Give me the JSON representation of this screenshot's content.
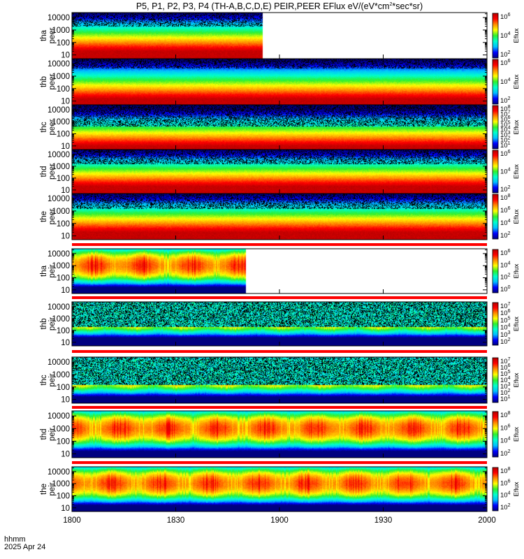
{
  "title_main": "P5, P1, P2, P3, P4 (TH-A,B,C,D,E) PEIR,PEER EFlux eV/(eV*cm",
  "title_exp": "2",
  "title_tail": "*sec*sr)",
  "time_axis": {
    "label_line1": "hhmm",
    "label_line2": "2025 Apr 24",
    "ticks": [
      "1800",
      "1830",
      "1900",
      "1930",
      "2000"
    ]
  },
  "colorbar_label": "Eflux",
  "colors": {
    "spectrogram_scale": [
      "#000080",
      "#0000ff",
      "#00bfff",
      "#00ffcc",
      "#2ef02e",
      "#ffff00",
      "#ff8c00",
      "#ff0000",
      "#b40000"
    ],
    "no_data_marks": "#000000",
    "bar_red": "#ff0000",
    "bar_yellow": "#ffff00"
  },
  "chart_data": [
    {
      "type": "heatmap",
      "probe": "tha",
      "species": "peer",
      "ylabel_1": "tha",
      "ylabel_2": "peer",
      "yticks": [
        "10",
        "100",
        "1000",
        "10000"
      ],
      "ylim": [
        5,
        25000
      ],
      "yscale": "log",
      "x_range": [
        "1800",
        "2000"
      ],
      "data_end_fraction": 0.46,
      "colorbar_ticks": [
        {
          "base": "10",
          "exp": "6"
        },
        {
          "base": "10",
          "exp": "4"
        },
        {
          "base": "10",
          "exp": "2"
        }
      ],
      "peak_energy_eV": 20,
      "noise_floor_energy_eV": 2000
    },
    {
      "type": "heatmap",
      "probe": "thb",
      "species": "peer",
      "ylabel_1": "thb",
      "ylabel_2": "peer",
      "yticks": [
        "10",
        "100",
        "1000",
        "10000"
      ],
      "ylim": [
        5,
        25000
      ],
      "yscale": "log",
      "x_range": [
        "1800",
        "2000"
      ],
      "data_end_fraction": 1.0,
      "colorbar_ticks": [
        {
          "base": "10",
          "exp": "6"
        },
        {
          "base": "10",
          "exp": "4"
        },
        {
          "base": "10",
          "exp": "2"
        }
      ],
      "peak_energy_eV": 15,
      "noise_floor_energy_eV": 4000
    },
    {
      "type": "heatmap",
      "probe": "thc",
      "species": "peer",
      "ylabel_1": "thc",
      "ylabel_2": "peer",
      "yticks": [
        "10",
        "100",
        "1000",
        "10000"
      ],
      "ylim": [
        5,
        25000
      ],
      "yscale": "log",
      "x_range": [
        "1800",
        "2000"
      ],
      "data_end_fraction": 1.0,
      "colorbar_ticks": [
        {
          "base": "10",
          "exp": "8"
        },
        {
          "base": "10",
          "exp": "7"
        },
        {
          "base": "10",
          "exp": "6"
        },
        {
          "base": "10",
          "exp": "5"
        },
        {
          "base": "10",
          "exp": "4"
        },
        {
          "base": "10",
          "exp": "3"
        },
        {
          "base": "10",
          "exp": "2"
        },
        {
          "base": "10",
          "exp": "1"
        }
      ],
      "peak_energy_eV": 10,
      "noise_floor_energy_eV": 400
    },
    {
      "type": "heatmap",
      "probe": "thd",
      "species": "peer",
      "ylabel_1": "thd",
      "ylabel_2": "peer",
      "yticks": [
        "10",
        "100",
        "1000",
        "10000"
      ],
      "ylim": [
        5,
        25000
      ],
      "yscale": "log",
      "x_range": [
        "1800",
        "2000"
      ],
      "data_end_fraction": 1.0,
      "colorbar_ticks": [
        {
          "base": "10",
          "exp": "6"
        },
        {
          "base": "10",
          "exp": "4"
        },
        {
          "base": "10",
          "exp": "2"
        }
      ],
      "peak_energy_eV": 20,
      "noise_floor_energy_eV": 1500
    },
    {
      "type": "heatmap",
      "probe": "the",
      "species": "peer",
      "ylabel_1": "the",
      "ylabel_2": "peer",
      "yticks": [
        "10",
        "100",
        "1000",
        "10000"
      ],
      "ylim": [
        5,
        25000
      ],
      "yscale": "log",
      "x_range": [
        "1800",
        "2000"
      ],
      "data_end_fraction": 1.0,
      "colorbar_ticks": [
        {
          "base": "10",
          "exp": "8"
        },
        {
          "base": "10",
          "exp": "6"
        },
        {
          "base": "10",
          "exp": "4"
        },
        {
          "base": "10",
          "exp": "2"
        }
      ],
      "peak_energy_eV": 20,
      "noise_floor_energy_eV": 1500
    },
    {
      "type": "heatmap",
      "probe": "tha",
      "species": "peir",
      "ylabel_1": "tha",
      "ylabel_2": "peir",
      "yticks": [
        "10",
        "100",
        "1000",
        "10000"
      ],
      "ylim": [
        5,
        25000
      ],
      "yscale": "log",
      "x_range": [
        "1800",
        "2000"
      ],
      "data_end_fraction": 0.42,
      "colorbar_ticks": [
        {
          "base": "10",
          "exp": "6"
        },
        {
          "base": "10",
          "exp": "4"
        },
        {
          "base": "10",
          "exp": "2"
        },
        {
          "base": "10",
          "exp": "0"
        }
      ],
      "peak_energy_eV": 1000,
      "noise_floor_energy_eV": 0
    },
    {
      "type": "heatmap",
      "probe": "thb",
      "species": "peir",
      "ylabel_1": "thb",
      "ylabel_2": "peir",
      "yticks": [
        "10",
        "100",
        "1000",
        "10000"
      ],
      "ylim": [
        5,
        25000
      ],
      "yscale": "log",
      "x_range": [
        "1800",
        "2000"
      ],
      "data_end_fraction": 1.0,
      "colorbar_ticks": [
        {
          "base": "10",
          "exp": "7"
        },
        {
          "base": "10",
          "exp": "6"
        },
        {
          "base": "10",
          "exp": "5"
        },
        {
          "base": "10",
          "exp": "4"
        },
        {
          "base": "10",
          "exp": "3"
        },
        {
          "base": "10",
          "exp": "2"
        }
      ],
      "peak_energy_eV": 1500,
      "noise_floor_energy_eV": 200
    },
    {
      "type": "heatmap",
      "probe": "thc",
      "species": "peir",
      "ylabel_1": "thc",
      "ylabel_2": "peir",
      "yticks": [
        "10",
        "100",
        "1000",
        "10000"
      ],
      "ylim": [
        5,
        25000
      ],
      "yscale": "log",
      "x_range": [
        "1800",
        "2000"
      ],
      "data_end_fraction": 1.0,
      "colorbar_ticks": [
        {
          "base": "10",
          "exp": "7"
        },
        {
          "base": "10",
          "exp": "6"
        },
        {
          "base": "10",
          "exp": "5"
        },
        {
          "base": "10",
          "exp": "4"
        },
        {
          "base": "10",
          "exp": "3"
        },
        {
          "base": "10",
          "exp": "2"
        },
        {
          "base": "10",
          "exp": "1"
        }
      ],
      "peak_energy_eV": 1000,
      "noise_floor_energy_eV": 150
    },
    {
      "type": "heatmap",
      "probe": "thd",
      "species": "peir",
      "ylabel_1": "thd",
      "ylabel_2": "peir",
      "yticks": [
        "10",
        "100",
        "1000",
        "10000"
      ],
      "ylim": [
        5,
        25000
      ],
      "yscale": "log",
      "x_range": [
        "1800",
        "2000"
      ],
      "data_end_fraction": 1.0,
      "colorbar_ticks": [
        {
          "base": "10",
          "exp": "8"
        },
        {
          "base": "10",
          "exp": "6"
        },
        {
          "base": "10",
          "exp": "4"
        },
        {
          "base": "10",
          "exp": "2"
        }
      ],
      "peak_energy_eV": 1000,
      "noise_floor_energy_eV": 0
    },
    {
      "type": "heatmap",
      "probe": "the",
      "species": "peir",
      "ylabel_1": "the",
      "ylabel_2": "peir",
      "yticks": [
        "10",
        "100",
        "1000",
        "10000"
      ],
      "ylim": [
        5,
        25000
      ],
      "yscale": "log",
      "x_range": [
        "1800",
        "2000"
      ],
      "data_end_fraction": 1.0,
      "colorbar_ticks": [
        {
          "base": "10",
          "exp": "8"
        },
        {
          "base": "10",
          "exp": "6"
        },
        {
          "base": "10",
          "exp": "4"
        },
        {
          "base": "10",
          "exp": "2"
        }
      ],
      "peak_energy_eV": 1000,
      "noise_floor_energy_eV": 0
    }
  ]
}
